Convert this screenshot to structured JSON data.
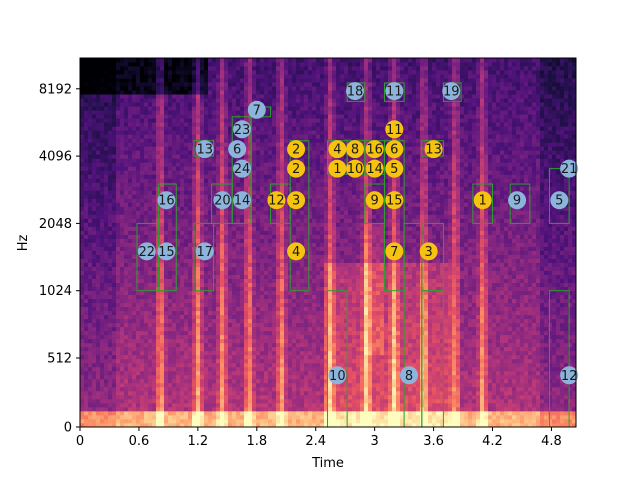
{
  "chart_data": {
    "type": "heatmap",
    "xlabel": "Time",
    "ylabel": "Hz",
    "xlim": [
      0,
      5.05
    ],
    "y_scale": "log2-like spectrogram axis",
    "x_ticks": [
      {
        "value": 0,
        "label": "0"
      },
      {
        "value": 0.6,
        "label": "0.6"
      },
      {
        "value": 1.2,
        "label": "1.2"
      },
      {
        "value": 1.8,
        "label": "1.8"
      },
      {
        "value": 2.4,
        "label": "2.4"
      },
      {
        "value": 3.0,
        "label": "3"
      },
      {
        "value": 3.6,
        "label": "3.6"
      },
      {
        "value": 4.2,
        "label": "4.2"
      },
      {
        "value": 4.8,
        "label": "4.8"
      }
    ],
    "y_ticks": [
      {
        "value": 0,
        "label": "0"
      },
      {
        "value": 512,
        "label": "512"
      },
      {
        "value": 1024,
        "label": "1024"
      },
      {
        "value": 2048,
        "label": "2048"
      },
      {
        "value": 4096,
        "label": "4096"
      },
      {
        "value": 8192,
        "label": "8192"
      }
    ],
    "colormap": "magma",
    "box_color": "#2ca02c",
    "blue_color": "#8db5dc",
    "yellow_color": "#f6c40f",
    "blue_markers": [
      {
        "label": "22",
        "t": 0.68,
        "hz": 1536
      },
      {
        "label": "15",
        "t": 0.88,
        "hz": 1536
      },
      {
        "label": "16",
        "t": 0.88,
        "hz": 2600
      },
      {
        "label": "17",
        "t": 1.27,
        "hz": 1536
      },
      {
        "label": "13",
        "t": 1.27,
        "hz": 4400
      },
      {
        "label": "20",
        "t": 1.45,
        "hz": 2600
      },
      {
        "label": "14",
        "t": 1.65,
        "hz": 2600
      },
      {
        "label": "6",
        "t": 1.6,
        "hz": 4400
      },
      {
        "label": "23",
        "t": 1.65,
        "hz": 5400
      },
      {
        "label": "24",
        "t": 1.65,
        "hz": 3600
      },
      {
        "label": "7",
        "t": 1.8,
        "hz": 6600
      },
      {
        "label": "18",
        "t": 2.8,
        "hz": 8000
      },
      {
        "label": "11",
        "t": 3.2,
        "hz": 8000
      },
      {
        "label": "19",
        "t": 3.78,
        "hz": 8000
      },
      {
        "label": "10",
        "t": 2.62,
        "hz": 384
      },
      {
        "label": "8",
        "t": 3.35,
        "hz": 384
      },
      {
        "label": "9",
        "t": 4.45,
        "hz": 2600
      },
      {
        "label": "5",
        "t": 4.88,
        "hz": 2600
      },
      {
        "label": "21",
        "t": 4.98,
        "hz": 3600
      },
      {
        "label": "12",
        "t": 4.98,
        "hz": 384
      }
    ],
    "yellow_markers": [
      {
        "label": "12",
        "t": 2.0,
        "hz": 2600
      },
      {
        "label": "3",
        "t": 2.2,
        "hz": 2600
      },
      {
        "label": "2",
        "t": 2.2,
        "hz": 3600
      },
      {
        "label": "2",
        "t": 2.2,
        "hz": 4400
      },
      {
        "label": "4",
        "t": 2.2,
        "hz": 1536
      },
      {
        "label": "4",
        "t": 2.62,
        "hz": 4400
      },
      {
        "label": "8",
        "t": 2.8,
        "hz": 4400
      },
      {
        "label": "16",
        "t": 3.0,
        "hz": 4400
      },
      {
        "label": "6",
        "t": 3.2,
        "hz": 4400
      },
      {
        "label": "1",
        "t": 2.62,
        "hz": 3600
      },
      {
        "label": "10",
        "t": 2.8,
        "hz": 3600
      },
      {
        "label": "14",
        "t": 3.0,
        "hz": 3600
      },
      {
        "label": "5",
        "t": 3.2,
        "hz": 3600
      },
      {
        "label": "11",
        "t": 3.2,
        "hz": 5400
      },
      {
        "label": "9",
        "t": 3.0,
        "hz": 2600
      },
      {
        "label": "15",
        "t": 3.2,
        "hz": 2600
      },
      {
        "label": "7",
        "t": 3.2,
        "hz": 1536
      },
      {
        "label": "3",
        "t": 3.55,
        "hz": 1536
      },
      {
        "label": "13",
        "t": 3.6,
        "hz": 4400
      },
      {
        "label": "1",
        "t": 4.1,
        "hz": 2600
      }
    ],
    "boxes": [
      {
        "t0": 0.58,
        "t1": 0.8,
        "hz0": 1024,
        "hz1": 2048
      },
      {
        "t0": 0.8,
        "t1": 0.98,
        "hz0": 1024,
        "hz1": 3072
      },
      {
        "t0": 1.16,
        "t1": 1.36,
        "hz0": 1024,
        "hz1": 2048
      },
      {
        "t0": 1.16,
        "t1": 1.36,
        "hz0": 4096,
        "hz1": 4800
      },
      {
        "t0": 1.34,
        "t1": 1.55,
        "hz0": 2048,
        "hz1": 3072
      },
      {
        "t0": 1.55,
        "t1": 1.74,
        "hz0": 2048,
        "hz1": 6144
      },
      {
        "t0": 1.74,
        "t1": 1.94,
        "hz0": 6144,
        "hz1": 6800
      },
      {
        "t0": 1.94,
        "t1": 2.14,
        "hz0": 2048,
        "hz1": 3072
      },
      {
        "t0": 2.14,
        "t1": 2.33,
        "hz0": 1024,
        "hz1": 4800
      },
      {
        "t0": 2.52,
        "t1": 2.72,
        "hz0": 0,
        "hz1": 1024
      },
      {
        "t0": 2.52,
        "t1": 2.72,
        "hz0": 3400,
        "hz1": 4800
      },
      {
        "t0": 2.72,
        "t1": 2.9,
        "hz0": 3400,
        "hz1": 4800
      },
      {
        "t0": 2.72,
        "t1": 2.9,
        "hz0": 7200,
        "hz1": 8700
      },
      {
        "t0": 2.9,
        "t1": 3.1,
        "hz0": 3400,
        "hz1": 4800
      },
      {
        "t0": 2.9,
        "t1": 3.1,
        "hz0": 2048,
        "hz1": 3072
      },
      {
        "t0": 3.1,
        "t1": 3.3,
        "hz0": 1024,
        "hz1": 4800
      },
      {
        "t0": 3.1,
        "t1": 3.3,
        "hz0": 7200,
        "hz1": 8700
      },
      {
        "t0": 3.3,
        "t1": 3.48,
        "hz0": 0,
        "hz1": 2048
      },
      {
        "t0": 3.48,
        "t1": 3.7,
        "hz0": 1024,
        "hz1": 2048
      },
      {
        "t0": 3.48,
        "t1": 3.7,
        "hz0": 4096,
        "hz1": 4800
      },
      {
        "t0": 3.48,
        "t1": 3.7,
        "hz0": 0,
        "hz1": 1024
      },
      {
        "t0": 3.7,
        "t1": 3.88,
        "hz0": 7200,
        "hz1": 8700
      },
      {
        "t0": 4.0,
        "t1": 4.2,
        "hz0": 2048,
        "hz1": 3072
      },
      {
        "t0": 4.38,
        "t1": 4.58,
        "hz0": 2048,
        "hz1": 3072
      },
      {
        "t0": 4.78,
        "t1": 4.98,
        "hz0": 2048,
        "hz1": 3600
      },
      {
        "t0": 4.78,
        "t1": 4.98,
        "hz0": 0,
        "hz1": 1024
      }
    ]
  }
}
